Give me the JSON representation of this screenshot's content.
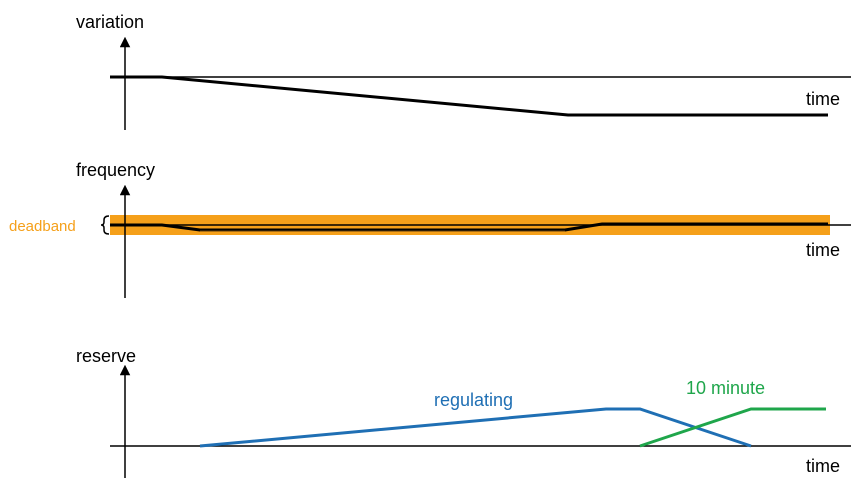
{
  "colors": {
    "axis": "#000000",
    "band": "#f5a01a",
    "regulating": "#1f6fb4",
    "ten_minute": "#1fa64b"
  },
  "panels": {
    "variation": {
      "ylabel": "variation",
      "xlabel": "time"
    },
    "frequency": {
      "ylabel": "frequency",
      "xlabel": "time",
      "band_label": "deadband"
    },
    "reserve": {
      "ylabel": "reserve",
      "xlabel": "time",
      "series": [
        {
          "name": "regulating",
          "color": "#1f6fb4"
        },
        {
          "name": "10 minute",
          "color": "#1fa64b"
        }
      ]
    }
  }
}
